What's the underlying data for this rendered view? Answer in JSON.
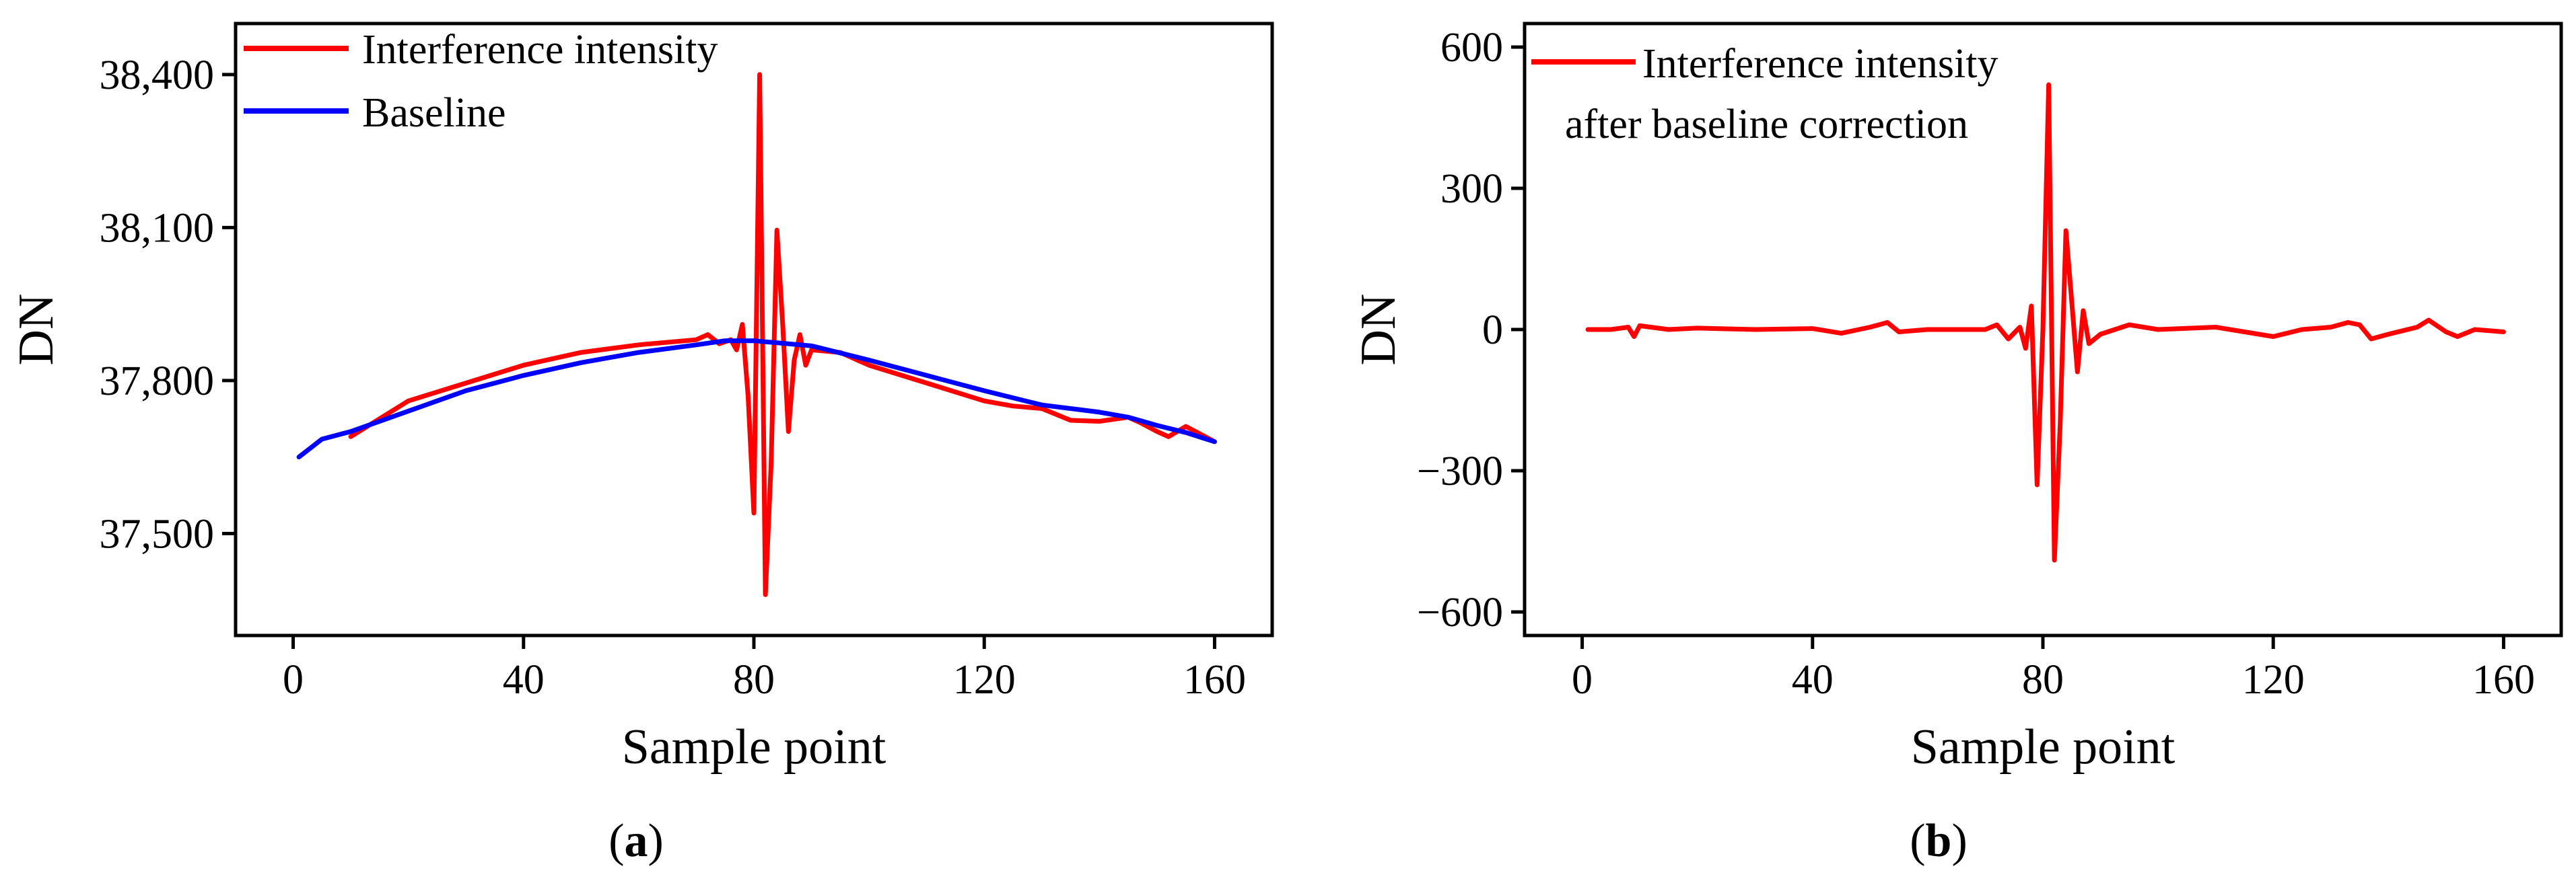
{
  "figure": {
    "panel_labels": [
      {
        "open": "(",
        "letter": "a",
        "close": ")"
      },
      {
        "open": "(",
        "letter": "b",
        "close": ")"
      }
    ]
  },
  "chart_data": [
    {
      "type": "line",
      "xlabel": "Sample point",
      "ylabel": "DN",
      "xlim": [
        -10,
        170
      ],
      "ylim": [
        37300,
        38500
      ],
      "xticks": [
        0,
        40,
        80,
        120,
        160
      ],
      "xtick_labels": [
        "0",
        "40",
        "80",
        "120",
        "160"
      ],
      "yticks": [
        37500,
        37800,
        38100,
        38400
      ],
      "ytick_labels": [
        "37,500",
        "37,800",
        "38,100",
        "38,400"
      ],
      "legend_position": "top-left",
      "series": [
        {
          "name": "Interference intensity",
          "legend_lines": [
            "Interference intensity"
          ],
          "color": "#ff0000",
          "x": [
            10,
            20,
            30,
            40,
            50,
            60,
            70,
            72,
            74,
            76,
            77,
            78,
            79,
            80,
            81,
            82,
            83,
            84,
            85,
            86,
            87,
            88,
            89,
            90,
            95,
            100,
            110,
            120,
            125,
            130,
            135,
            140,
            145,
            147,
            150,
            152,
            155,
            160
          ],
          "y": [
            37690,
            37760,
            37795,
            37830,
            37855,
            37870,
            37880,
            37890,
            37872,
            37880,
            37860,
            37910,
            37770,
            37540,
            38400,
            37380,
            37640,
            38095,
            37910,
            37700,
            37840,
            37890,
            37830,
            37860,
            37855,
            37830,
            37795,
            37760,
            37750,
            37745,
            37722,
            37720,
            37728,
            37718,
            37700,
            37690,
            37710,
            37680
          ]
        },
        {
          "name": "Baseline",
          "legend_lines": [
            "Baseline"
          ],
          "color": "#0000ff",
          "x": [
            1,
            5,
            10,
            20,
            30,
            40,
            50,
            60,
            70,
            75,
            80,
            90,
            100,
            110,
            120,
            130,
            140,
            145,
            150,
            155,
            160
          ],
          "y": [
            37650,
            37685,
            37700,
            37740,
            37780,
            37810,
            37835,
            37855,
            37870,
            37878,
            37878,
            37868,
            37840,
            37810,
            37780,
            37752,
            37738,
            37728,
            37712,
            37698,
            37680
          ]
        }
      ]
    },
    {
      "type": "line",
      "xlabel": "Sample point",
      "ylabel": "DN",
      "xlim": [
        -10,
        170
      ],
      "ylim": [
        -650,
        650
      ],
      "xticks": [
        0,
        40,
        80,
        120,
        160
      ],
      "xtick_labels": [
        "0",
        "40",
        "80",
        "120",
        "160"
      ],
      "yticks": [
        -600,
        -300,
        0,
        300,
        600
      ],
      "ytick_labels": [
        "−600",
        "−300",
        "0",
        "300",
        "600"
      ],
      "legend_position": "top-left",
      "series": [
        {
          "name": "Interference intensity after baseline correction",
          "legend_lines": [
            "Interference intensity",
            "after baseline correction"
          ],
          "color": "#ff0000",
          "x": [
            1,
            5,
            8,
            9,
            10,
            15,
            20,
            30,
            40,
            45,
            50,
            53,
            55,
            60,
            70,
            72,
            74,
            76,
            77,
            78,
            79,
            80,
            81,
            82,
            83,
            84,
            85,
            86,
            87,
            88,
            89,
            90,
            95,
            100,
            110,
            120,
            125,
            130,
            133,
            135,
            137,
            140,
            145,
            147,
            150,
            152,
            155,
            160
          ],
          "y": [
            0,
            0,
            5,
            -15,
            8,
            0,
            3,
            0,
            2,
            -8,
            5,
            15,
            -5,
            0,
            0,
            10,
            -20,
            5,
            -40,
            50,
            -330,
            0,
            520,
            -490,
            -200,
            210,
            60,
            -90,
            40,
            -30,
            -20,
            -10,
            10,
            0,
            5,
            -15,
            0,
            5,
            15,
            10,
            -20,
            -10,
            5,
            20,
            -5,
            -15,
            0,
            -5
          ]
        }
      ]
    }
  ]
}
